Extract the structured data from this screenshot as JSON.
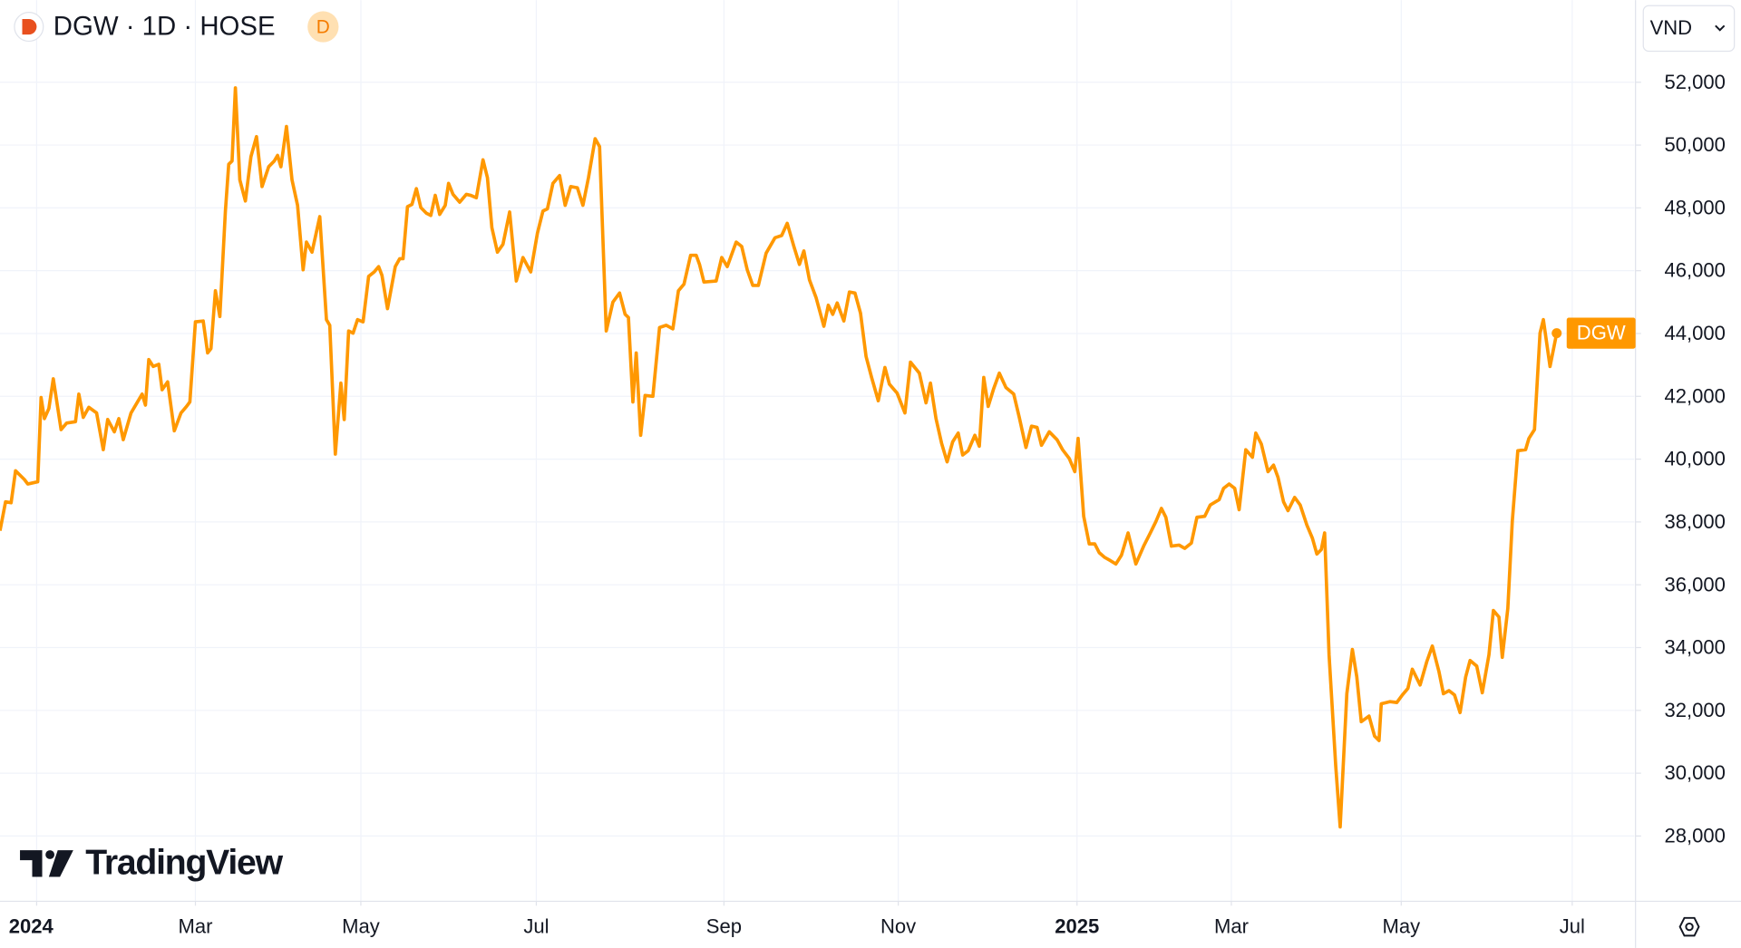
{
  "header": {
    "symbol_title": "DGW · 1D · HOSE",
    "badge": "D",
    "currency": "VND"
  },
  "watermark": "TradingView",
  "chart_data": {
    "type": "line",
    "xlim": [
      0,
      1472
    ],
    "ylim": [
      25922,
      54615
    ],
    "xticks": [
      {
        "value": 33,
        "label": "2024"
      },
      {
        "value": 176,
        "label": "Mar"
      },
      {
        "value": 325,
        "label": "May"
      },
      {
        "value": 483,
        "label": "Jul"
      },
      {
        "value": 652,
        "label": "Sep"
      },
      {
        "value": 809,
        "label": "Nov"
      },
      {
        "value": 970,
        "label": "2025"
      },
      {
        "value": 1109,
        "label": "Mar"
      },
      {
        "value": 1262,
        "label": "May"
      },
      {
        "value": 1416,
        "label": "Jul"
      }
    ],
    "yticks": [
      {
        "value": 28000,
        "label": "28,000"
      },
      {
        "value": 30000,
        "label": "30,000"
      },
      {
        "value": 32000,
        "label": "32,000"
      },
      {
        "value": 34000,
        "label": "34,000"
      },
      {
        "value": 36000,
        "label": "36,000"
      },
      {
        "value": 38000,
        "label": "38,000"
      },
      {
        "value": 40000,
        "label": "40,000"
      },
      {
        "value": 42000,
        "label": "42,000"
      },
      {
        "value": 44000,
        "label": "44,000"
      },
      {
        "value": 46000,
        "label": "46,000"
      },
      {
        "value": 48000,
        "label": "48,000"
      },
      {
        "value": 50000,
        "label": "50,000"
      },
      {
        "value": 52000,
        "label": "52,000"
      }
    ],
    "grid": true,
    "series": [
      {
        "name": "DGW",
        "color": "#ff9800",
        "x": [
          0,
          5,
          10,
          14,
          22,
          25,
          34,
          37,
          40,
          44,
          48,
          55,
          60,
          68,
          71,
          75,
          80,
          87,
          93,
          97,
          103,
          107,
          111,
          118,
          128,
          131,
          134,
          138,
          143,
          146,
          151,
          157,
          163,
          168,
          171,
          176,
          183,
          187,
          190,
          194,
          198,
          203,
          206,
          209,
          212,
          216,
          221,
          226,
          231,
          236,
          242,
          247,
          250,
          253,
          258,
          263,
          268,
          273,
          276,
          281,
          288,
          294,
          297,
          302,
          307,
          310,
          314,
          318,
          322,
          327,
          332,
          337,
          341,
          344,
          349,
          356,
          360,
          363,
          367,
          371,
          375,
          379,
          384,
          388,
          392,
          396,
          401,
          404,
          408,
          414,
          420,
          424,
          429,
          435,
          439,
          443,
          448,
          453,
          459,
          465,
          471,
          478,
          484,
          489,
          493,
          498,
          504,
          509,
          514,
          520,
          525,
          530,
          536,
          540,
          546,
          552,
          558,
          563,
          566,
          570,
          573,
          577,
          581,
          588,
          594,
          600,
          606,
          611,
          616,
          622,
          627,
          630,
          634,
          645,
          650,
          655,
          663,
          668,
          673,
          678,
          683,
          690,
          698,
          704,
          709,
          715,
          720,
          724,
          729,
          735,
          742,
          746,
          750,
          754,
          760,
          765,
          770,
          775,
          780,
          785,
          791,
          797,
          801,
          808,
          815,
          820,
          828,
          834,
          838,
          843,
          848,
          853,
          858,
          863,
          867,
          872,
          878,
          882,
          886,
          890,
          895,
          900,
          906,
          913,
          918,
          924,
          929,
          934,
          938,
          945,
          952,
          957,
          963,
          968,
          971,
          976,
          981,
          986,
          990,
          995,
          1000,
          1005,
          1010,
          1016,
          1023,
          1030,
          1036,
          1041,
          1046,
          1050,
          1055,
          1062,
          1067,
          1073,
          1078,
          1085,
          1090,
          1098,
          1102,
          1107,
          1112,
          1116,
          1122,
          1128,
          1131,
          1136,
          1142,
          1147,
          1151,
          1156,
          1160,
          1166,
          1171,
          1177,
          1182,
          1186,
          1190,
          1193,
          1197,
          1203,
          1207,
          1213,
          1218,
          1222,
          1226,
          1233,
          1238,
          1242,
          1244,
          1252,
          1258,
          1263,
          1268,
          1272,
          1279,
          1285,
          1290,
          1296,
          1300,
          1305,
          1310,
          1315,
          1320,
          1324,
          1330,
          1335,
          1341,
          1345,
          1350,
          1353,
          1358,
          1362,
          1367,
          1374,
          1377,
          1382,
          1387,
          1390,
          1396,
          1402
        ],
        "values": [
          37720,
          38640,
          38610,
          39630,
          39350,
          39210,
          39280,
          41960,
          41290,
          41610,
          42560,
          40940,
          41150,
          41190,
          42070,
          41330,
          41650,
          41470,
          40300,
          41260,
          40870,
          41290,
          40620,
          41470,
          42070,
          41720,
          43170,
          42950,
          43020,
          42210,
          42460,
          40900,
          41470,
          41680,
          41820,
          44370,
          44400,
          43380,
          43520,
          45360,
          44540,
          47900,
          49390,
          49490,
          51820,
          48890,
          48220,
          49630,
          50270,
          48680,
          49310,
          49490,
          49670,
          49310,
          50590,
          48890,
          48080,
          46030,
          46910,
          46590,
          47720,
          44440,
          44260,
          40160,
          42420,
          41260,
          44080,
          44010,
          44440,
          44370,
          45820,
          45960,
          46130,
          45850,
          44790,
          46130,
          46380,
          46380,
          48040,
          48110,
          48610,
          48010,
          47830,
          47760,
          48400,
          47790,
          48080,
          48780,
          48430,
          48180,
          48430,
          48400,
          48320,
          49530,
          48960,
          47370,
          46590,
          46840,
          47870,
          45670,
          46420,
          45960,
          47190,
          47900,
          47970,
          48780,
          49030,
          48080,
          48680,
          48640,
          48080,
          48960,
          50200,
          49950,
          44080,
          45000,
          45290,
          44610,
          44510,
          41820,
          43380,
          40760,
          42030,
          42000,
          44190,
          44260,
          44150,
          45360,
          45570,
          46490,
          46490,
          46200,
          45640,
          45670,
          46420,
          46130,
          46910,
          46770,
          46030,
          45530,
          45530,
          46560,
          47050,
          47120,
          47510,
          46770,
          46200,
          46630,
          45710,
          45140,
          44230,
          44900,
          44610,
          44970,
          44400,
          45320,
          45290,
          44650,
          43270,
          42600,
          41860,
          42920,
          42390,
          42100,
          41470,
          43090,
          42740,
          41790,
          42420,
          41290,
          40510,
          39910,
          40550,
          40830,
          40130,
          40270,
          40760,
          40410,
          42600,
          41680,
          42250,
          42740,
          42280,
          42070,
          41330,
          40370,
          41050,
          41010,
          40440,
          40870,
          40620,
          40300,
          40020,
          39600,
          40660,
          38180,
          37300,
          37300,
          37020,
          36870,
          36770,
          36660,
          36940,
          37650,
          36660,
          37230,
          37650,
          38010,
          38430,
          38150,
          37230,
          37260,
          37160,
          37330,
          38150,
          38180,
          38540,
          38710,
          39070,
          39210,
          39070,
          38390,
          40300,
          40060,
          40830,
          40480,
          39600,
          39810,
          39420,
          38640,
          38360,
          38780,
          38540,
          37900,
          37480,
          36980,
          37120,
          37650,
          33770,
          30230,
          28290,
          32530,
          33940,
          33060,
          31640,
          31820,
          31180,
          31040,
          32210,
          32280,
          32250,
          32490,
          32700,
          33310,
          32810,
          33550,
          34050,
          33230,
          32530,
          32630,
          32490,
          31930,
          33060,
          33590,
          33410,
          32560,
          33770,
          35180,
          34970,
          33690,
          35250,
          38010,
          40270,
          40300,
          40660,
          40940,
          44010,
          44440,
          42950,
          44010
        ]
      }
    ]
  }
}
